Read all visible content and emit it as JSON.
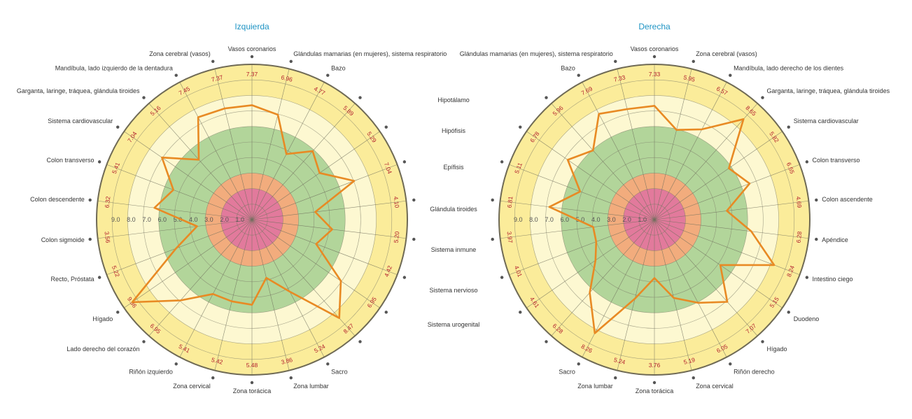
{
  "colors": {
    "zone_pink": "#e27a9c",
    "zone_orange": "#f2ac7d",
    "zone_green": "#b2d59a",
    "zone_cream": "#fdf8d1",
    "zone_yellow": "#fbec9a",
    "line": "#e88a24",
    "value_text": "#b21f2d",
    "title": "#1f94c4"
  },
  "middle_labels": [
    "Hipotálamo",
    "Hipófisis",
    "Epífisis",
    "Glándula tiroides",
    "Sistema inmune",
    "Sistema nervioso",
    "Sistema urogenital"
  ],
  "chart_data": [
    {
      "type": "radar",
      "title": "Izquierda",
      "scale_labels": [
        "1.0",
        "2.0",
        "3.0",
        "4.0",
        "5.0",
        "6.0",
        "7.0",
        "8.0",
        "9.0"
      ],
      "categories": [
        "Vasos coronarios",
        "Glándulas mamarias (en mujeres), sistema respiratorio",
        "Bazo",
        "",
        "",
        "",
        "",
        "",
        "",
        "",
        "",
        "Sacro",
        "Zona lumbar",
        "Zona torácica",
        "Zona cervical",
        "Riñón izquierdo",
        "Lado derecho del corazón",
        "Hígado",
        "Recto, Próstata",
        "Colon sigmoide",
        "Colon descendente",
        "Colon transverso",
        "Sistema cardiovascular",
        "Garganta, laringe, tráquea, glándula tiroides",
        "Mandíbula, lado izquierdo de la dentadura",
        "Zona cerebral (vasos)"
      ],
      "value_labels": [
        "7.37",
        "6.96",
        "4.77",
        "5.89",
        "5.29",
        "7.04",
        "4.10",
        "5.20",
        "4.42",
        "6.95",
        "8.47",
        "5.24",
        "3.86",
        "5.48",
        "5.42",
        "5.41",
        "6.95",
        "9.36",
        "5.22",
        "3.56",
        "6.32",
        "5.41",
        "7.04",
        "5.16",
        "7.45",
        "7.37"
      ],
      "values": [
        7.37,
        6.96,
        4.77,
        5.89,
        5.29,
        7.04,
        4.1,
        5.2,
        4.42,
        6.95,
        8.47,
        5.24,
        3.86,
        5.48,
        5.42,
        5.41,
        6.95,
        9.36,
        5.22,
        3.56,
        6.32,
        5.41,
        7.04,
        5.16,
        7.45,
        7.37
      ],
      "zones": [
        {
          "from": 0,
          "to": 2,
          "color": "#e27a9c"
        },
        {
          "from": 2,
          "to": 3,
          "color": "#f2ac7d"
        },
        {
          "from": 3,
          "to": 6,
          "color": "#b2d59a"
        },
        {
          "from": 6,
          "to": 8,
          "color": "#fdf8d1"
        },
        {
          "from": 8,
          "to": 10,
          "color": "#fbec9a"
        }
      ],
      "rmax": 10
    },
    {
      "type": "radar",
      "title": "Derecha",
      "scale_labels": [
        "1.0",
        "2.0",
        "3.0",
        "4.0",
        "5.0",
        "6.0",
        "7.0",
        "8.0",
        "9.0"
      ],
      "categories": [
        "Vasos coronarios",
        "Zona cerebral (vasos)",
        "Mandíbula, lado derecho de los dientes",
        "Garganta, laringe, tráquea, glándula tiroides",
        "Sistema cardiovascular",
        "Colon transverso",
        "Colon ascendente",
        "Apéndice",
        "Intestino ciego",
        "Duodeno",
        "Hígado",
        "Riñón derecho",
        "Zona cervical",
        "Zona torácica",
        "Zona lumbar",
        "Sacro",
        "",
        "",
        "",
        "",
        "",
        "",
        "",
        "",
        "Bazo",
        "Glándulas mamarias (en mujeres), sistema respiratorio"
      ],
      "value_labels": [
        "7.33",
        "5.95",
        "6.57",
        "8.65",
        "5.82",
        "6.55",
        "4.69",
        "6.28",
        "8.24",
        "5.15",
        "7.07",
        "6.05",
        "5.19",
        "3.76",
        "5.24",
        "8.26",
        "6.28",
        "4.61",
        "4.01",
        "3.97",
        "6.81",
        "5.11",
        "6.78",
        "5.96",
        "7.69",
        "7.33"
      ],
      "values": [
        7.33,
        5.95,
        6.57,
        8.65,
        5.82,
        6.55,
        4.69,
        6.28,
        8.24,
        5.15,
        7.07,
        6.05,
        5.19,
        3.76,
        5.24,
        8.26,
        6.28,
        4.61,
        4.01,
        3.97,
        6.81,
        5.11,
        6.78,
        5.96,
        7.69,
        7.33
      ],
      "zones": [
        {
          "from": 0,
          "to": 2,
          "color": "#e27a9c"
        },
        {
          "from": 2,
          "to": 3,
          "color": "#f2ac7d"
        },
        {
          "from": 3,
          "to": 6,
          "color": "#b2d59a"
        },
        {
          "from": 6,
          "to": 8,
          "color": "#fdf8d1"
        },
        {
          "from": 8,
          "to": 10,
          "color": "#fbec9a"
        }
      ],
      "rmax": 10
    }
  ]
}
